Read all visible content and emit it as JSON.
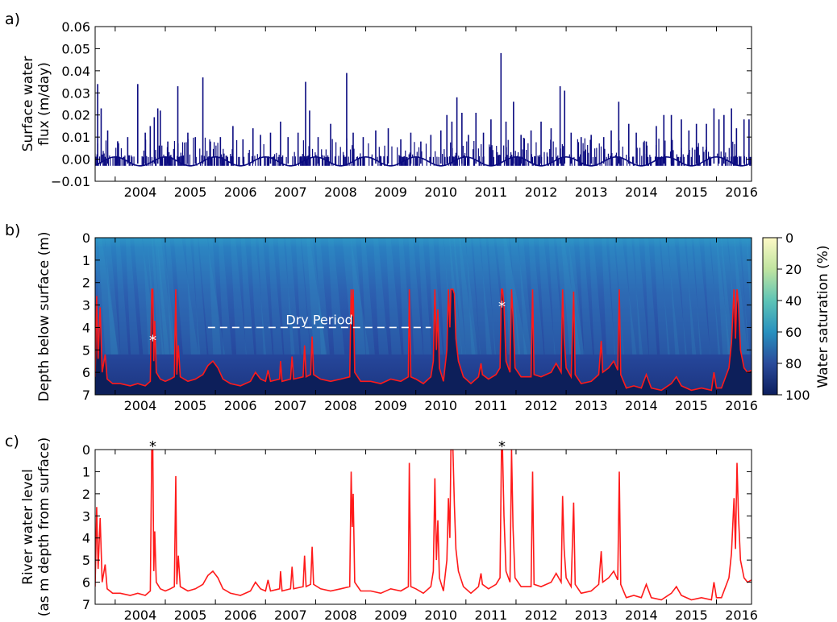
{
  "figure": {
    "panel_labels": [
      "a)",
      "b)",
      "c)"
    ],
    "x_tick_labels": [
      "2004",
      "2005",
      "2006",
      "2007",
      "2008",
      "2009",
      "2010",
      "2011",
      "2012",
      "2013",
      "2014",
      "2015",
      "2016"
    ]
  },
  "chart_data": [
    {
      "type": "line",
      "panel": "a)",
      "ylabel_lines": [
        "Surface water",
        "flux (m/day)"
      ],
      "xlim": [
        2003.6,
        2016.7
      ],
      "ylim": [
        -0.01,
        0.06
      ],
      "y_ticks": [
        -0.01,
        0.0,
        0.01,
        0.02,
        0.03,
        0.04,
        0.05,
        0.06
      ],
      "y_tick_labels": [
        "−0.01",
        "0.00",
        "0.01",
        "0.02",
        "0.03",
        "0.04",
        "0.05",
        "0.06"
      ],
      "series": [
        {
          "color": "#0b0b80",
          "baseline": "seasonal between -0.003 and 0.001",
          "peaks": [
            [
              2003.65,
              0.034
            ],
            [
              2003.72,
              0.023
            ],
            [
              2003.85,
              0.013
            ],
            [
              2004.05,
              0.008
            ],
            [
              2004.25,
              0.01
            ],
            [
              2004.45,
              0.034
            ],
            [
              2004.6,
              0.012
            ],
            [
              2004.7,
              0.015
            ],
            [
              2004.78,
              0.019
            ],
            [
              2004.85,
              0.023
            ],
            [
              2004.9,
              0.022
            ],
            [
              2005.05,
              0.008
            ],
            [
              2005.25,
              0.033
            ],
            [
              2005.45,
              0.012
            ],
            [
              2005.6,
              0.01
            ],
            [
              2005.75,
              0.037
            ],
            [
              2005.9,
              0.008
            ],
            [
              2006.1,
              0.01
            ],
            [
              2006.35,
              0.015
            ],
            [
              2006.55,
              0.009
            ],
            [
              2006.75,
              0.014
            ],
            [
              2006.9,
              0.011
            ],
            [
              2007.1,
              0.012
            ],
            [
              2007.3,
              0.017
            ],
            [
              2007.45,
              0.01
            ],
            [
              2007.65,
              0.012
            ],
            [
              2007.8,
              0.035
            ],
            [
              2007.88,
              0.022
            ],
            [
              2008.05,
              0.01
            ],
            [
              2008.3,
              0.016
            ],
            [
              2008.62,
              0.039
            ],
            [
              2008.75,
              0.012
            ],
            [
              2008.95,
              0.01
            ],
            [
              2009.2,
              0.013
            ],
            [
              2009.45,
              0.014
            ],
            [
              2009.7,
              0.009
            ],
            [
              2009.9,
              0.012
            ],
            [
              2010.1,
              0.008
            ],
            [
              2010.3,
              0.011
            ],
            [
              2010.5,
              0.013
            ],
            [
              2010.62,
              0.02
            ],
            [
              2010.72,
              0.017
            ],
            [
              2010.82,
              0.028
            ],
            [
              2010.92,
              0.021
            ],
            [
              2011.05,
              0.011
            ],
            [
              2011.2,
              0.021
            ],
            [
              2011.35,
              0.012
            ],
            [
              2011.5,
              0.018
            ],
            [
              2011.7,
              0.048
            ],
            [
              2011.8,
              0.017
            ],
            [
              2011.95,
              0.026
            ],
            [
              2012.1,
              0.011
            ],
            [
              2012.3,
              0.013
            ],
            [
              2012.5,
              0.017
            ],
            [
              2012.7,
              0.014
            ],
            [
              2012.88,
              0.033
            ],
            [
              2012.97,
              0.031
            ],
            [
              2013.1,
              0.012
            ],
            [
              2013.3,
              0.01
            ],
            [
              2013.5,
              0.011
            ],
            [
              2013.75,
              0.01
            ],
            [
              2013.9,
              0.013
            ],
            [
              2014.05,
              0.026
            ],
            [
              2014.25,
              0.016
            ],
            [
              2014.4,
              0.012
            ],
            [
              2014.6,
              0.008
            ],
            [
              2014.8,
              0.015
            ],
            [
              2014.95,
              0.02
            ],
            [
              2015.1,
              0.02
            ],
            [
              2015.3,
              0.018
            ],
            [
              2015.45,
              0.013
            ],
            [
              2015.6,
              0.016
            ],
            [
              2015.8,
              0.016
            ],
            [
              2015.95,
              0.023
            ],
            [
              2016.05,
              0.018
            ],
            [
              2016.15,
              0.02
            ],
            [
              2016.3,
              0.023
            ],
            [
              2016.4,
              0.014
            ],
            [
              2016.55,
              0.018
            ],
            [
              2016.65,
              0.018
            ]
          ]
        }
      ]
    },
    {
      "type": "heatmap",
      "panel": "b)",
      "ylabel": "Depth below surface (m)",
      "xlim": [
        2003.6,
        2016.7
      ],
      "ylim": [
        7,
        0
      ],
      "y_ticks": [
        0,
        1,
        2,
        3,
        4,
        5,
        6,
        7
      ],
      "y_tick_labels": [
        "0",
        "1",
        "2",
        "3",
        "4",
        "5",
        "6",
        "7"
      ],
      "colorbar": {
        "label": "Water saturation (%)",
        "range": [
          0,
          100
        ],
        "ticks": [
          0,
          20,
          40,
          60,
          80,
          100
        ],
        "tick_labels": [
          "0",
          "20",
          "40",
          "60",
          "80",
          "100"
        ],
        "colors": [
          "#fdf9c6",
          "#c0e4a0",
          "#5ec4b6",
          "#2891bf",
          "#2a4b9b",
          "#0c1e5e"
        ]
      },
      "annotation": {
        "text": "Dry Period",
        "x_start": 2005.85,
        "x_end": 2010.3,
        "depth": 4.0
      },
      "markers": [
        {
          "text": "*",
          "x": 2004.75,
          "depth": 4.5
        },
        {
          "text": "*",
          "x": 2011.72,
          "depth": 3.0
        }
      ],
      "overlay_series": {
        "color": "#ff1a1a",
        "source": "river water level (panel c)"
      }
    },
    {
      "type": "line",
      "panel": "c)",
      "ylabel_lines": [
        "River water level",
        "(as m depth from surface)"
      ],
      "xlim": [
        2003.6,
        2016.7
      ],
      "ylim": [
        7,
        0
      ],
      "y_ticks": [
        0,
        1,
        2,
        3,
        4,
        5,
        6,
        7
      ],
      "y_tick_labels": [
        "0",
        "1",
        "2",
        "3",
        "4",
        "5",
        "6",
        "7"
      ],
      "markers": [
        {
          "text": "*",
          "x": 2004.75
        },
        {
          "text": "*",
          "x": 2011.72
        }
      ],
      "series": [
        {
          "color": "#ff1a1a",
          "points": [
            [
              2003.6,
              6.2
            ],
            [
              2003.63,
              2.6
            ],
            [
              2003.66,
              5.4
            ],
            [
              2003.7,
              3.1
            ],
            [
              2003.74,
              6.0
            ],
            [
              2003.8,
              5.2
            ],
            [
              2003.84,
              6.3
            ],
            [
              2003.95,
              6.5
            ],
            [
              2004.1,
              6.5
            ],
            [
              2004.3,
              6.6
            ],
            [
              2004.45,
              6.5
            ],
            [
              2004.6,
              6.6
            ],
            [
              2004.7,
              6.4
            ],
            [
              2004.73,
              0.0
            ],
            [
              2004.75,
              0.0
            ],
            [
              2004.77,
              5.5
            ],
            [
              2004.79,
              3.7
            ],
            [
              2004.82,
              6.0
            ],
            [
              2004.9,
              6.3
            ],
            [
              2005.0,
              6.4
            ],
            [
              2005.1,
              6.3
            ],
            [
              2005.18,
              6.2
            ],
            [
              2005.21,
              1.2
            ],
            [
              2005.23,
              6.1
            ],
            [
              2005.26,
              4.8
            ],
            [
              2005.3,
              6.2
            ],
            [
              2005.45,
              6.4
            ],
            [
              2005.6,
              6.3
            ],
            [
              2005.75,
              6.1
            ],
            [
              2005.85,
              5.7
            ],
            [
              2005.95,
              5.5
            ],
            [
              2006.05,
              5.8
            ],
            [
              2006.15,
              6.3
            ],
            [
              2006.3,
              6.5
            ],
            [
              2006.5,
              6.6
            ],
            [
              2006.7,
              6.4
            ],
            [
              2006.8,
              6.0
            ],
            [
              2006.9,
              6.3
            ],
            [
              2007.0,
              6.4
            ],
            [
              2007.05,
              5.9
            ],
            [
              2007.1,
              6.4
            ],
            [
              2007.28,
              6.3
            ],
            [
              2007.3,
              5.5
            ],
            [
              2007.33,
              6.4
            ],
            [
              2007.5,
              6.3
            ],
            [
              2007.53,
              5.3
            ],
            [
              2007.56,
              6.3
            ],
            [
              2007.75,
              6.2
            ],
            [
              2007.78,
              4.8
            ],
            [
              2007.81,
              6.2
            ],
            [
              2007.9,
              6.1
            ],
            [
              2007.93,
              4.4
            ],
            [
              2007.96,
              6.1
            ],
            [
              2008.1,
              6.3
            ],
            [
              2008.3,
              6.4
            ],
            [
              2008.5,
              6.3
            ],
            [
              2008.68,
              6.2
            ],
            [
              2008.71,
              1.0
            ],
            [
              2008.73,
              3.5
            ],
            [
              2008.75,
              2.0
            ],
            [
              2008.78,
              6.0
            ],
            [
              2008.9,
              6.4
            ],
            [
              2009.1,
              6.4
            ],
            [
              2009.3,
              6.5
            ],
            [
              2009.5,
              6.3
            ],
            [
              2009.7,
              6.4
            ],
            [
              2009.85,
              6.2
            ],
            [
              2009.87,
              0.6
            ],
            [
              2009.9,
              6.2
            ],
            [
              2010.0,
              6.3
            ],
            [
              2010.15,
              6.5
            ],
            [
              2010.3,
              6.2
            ],
            [
              2010.35,
              5.5
            ],
            [
              2010.38,
              1.3
            ],
            [
              2010.41,
              5.0
            ],
            [
              2010.44,
              3.2
            ],
            [
              2010.47,
              5.8
            ],
            [
              2010.55,
              6.4
            ],
            [
              2010.62,
              5.0
            ],
            [
              2010.65,
              2.2
            ],
            [
              2010.68,
              4.0
            ],
            [
              2010.7,
              0.0
            ],
            [
              2010.74,
              0.0
            ],
            [
              2010.77,
              2.5
            ],
            [
              2010.8,
              4.5
            ],
            [
              2010.85,
              5.5
            ],
            [
              2010.95,
              6.2
            ],
            [
              2011.1,
              6.5
            ],
            [
              2011.25,
              6.2
            ],
            [
              2011.3,
              5.6
            ],
            [
              2011.33,
              6.1
            ],
            [
              2011.45,
              6.3
            ],
            [
              2011.6,
              6.1
            ],
            [
              2011.68,
              5.8
            ],
            [
              2011.71,
              0.0
            ],
            [
              2011.73,
              0.0
            ],
            [
              2011.76,
              3.0
            ],
            [
              2011.8,
              5.5
            ],
            [
              2011.88,
              6.0
            ],
            [
              2011.91,
              0.0
            ],
            [
              2011.94,
              3.5
            ],
            [
              2011.98,
              5.8
            ],
            [
              2012.1,
              6.2
            ],
            [
              2012.3,
              6.2
            ],
            [
              2012.33,
              1.0
            ],
            [
              2012.36,
              6.1
            ],
            [
              2012.5,
              6.2
            ],
            [
              2012.7,
              6.0
            ],
            [
              2012.8,
              5.6
            ],
            [
              2012.9,
              6.0
            ],
            [
              2012.93,
              2.1
            ],
            [
              2012.96,
              4.5
            ],
            [
              2013.0,
              5.8
            ],
            [
              2013.1,
              6.2
            ],
            [
              2013.15,
              2.4
            ],
            [
              2013.18,
              6.1
            ],
            [
              2013.3,
              6.5
            ],
            [
              2013.5,
              6.4
            ],
            [
              2013.65,
              6.1
            ],
            [
              2013.7,
              4.6
            ],
            [
              2013.73,
              6.0
            ],
            [
              2013.85,
              5.8
            ],
            [
              2013.95,
              5.5
            ],
            [
              2014.03,
              5.9
            ],
            [
              2014.06,
              1.0
            ],
            [
              2014.09,
              6.1
            ],
            [
              2014.2,
              6.7
            ],
            [
              2014.35,
              6.6
            ],
            [
              2014.5,
              6.7
            ],
            [
              2014.6,
              6.1
            ],
            [
              2014.7,
              6.7
            ],
            [
              2014.9,
              6.8
            ],
            [
              2015.1,
              6.5
            ],
            [
              2015.2,
              6.2
            ],
            [
              2015.3,
              6.6
            ],
            [
              2015.5,
              6.8
            ],
            [
              2015.7,
              6.7
            ],
            [
              2015.9,
              6.8
            ],
            [
              2015.95,
              6.0
            ],
            [
              2016.0,
              6.7
            ],
            [
              2016.1,
              6.7
            ],
            [
              2016.25,
              5.8
            ],
            [
              2016.3,
              4.7
            ],
            [
              2016.35,
              2.2
            ],
            [
              2016.38,
              4.5
            ],
            [
              2016.41,
              0.6
            ],
            [
              2016.44,
              3.0
            ],
            [
              2016.48,
              5.0
            ],
            [
              2016.55,
              5.8
            ],
            [
              2016.62,
              6.0
            ],
            [
              2016.7,
              5.9
            ]
          ]
        }
      ]
    }
  ]
}
